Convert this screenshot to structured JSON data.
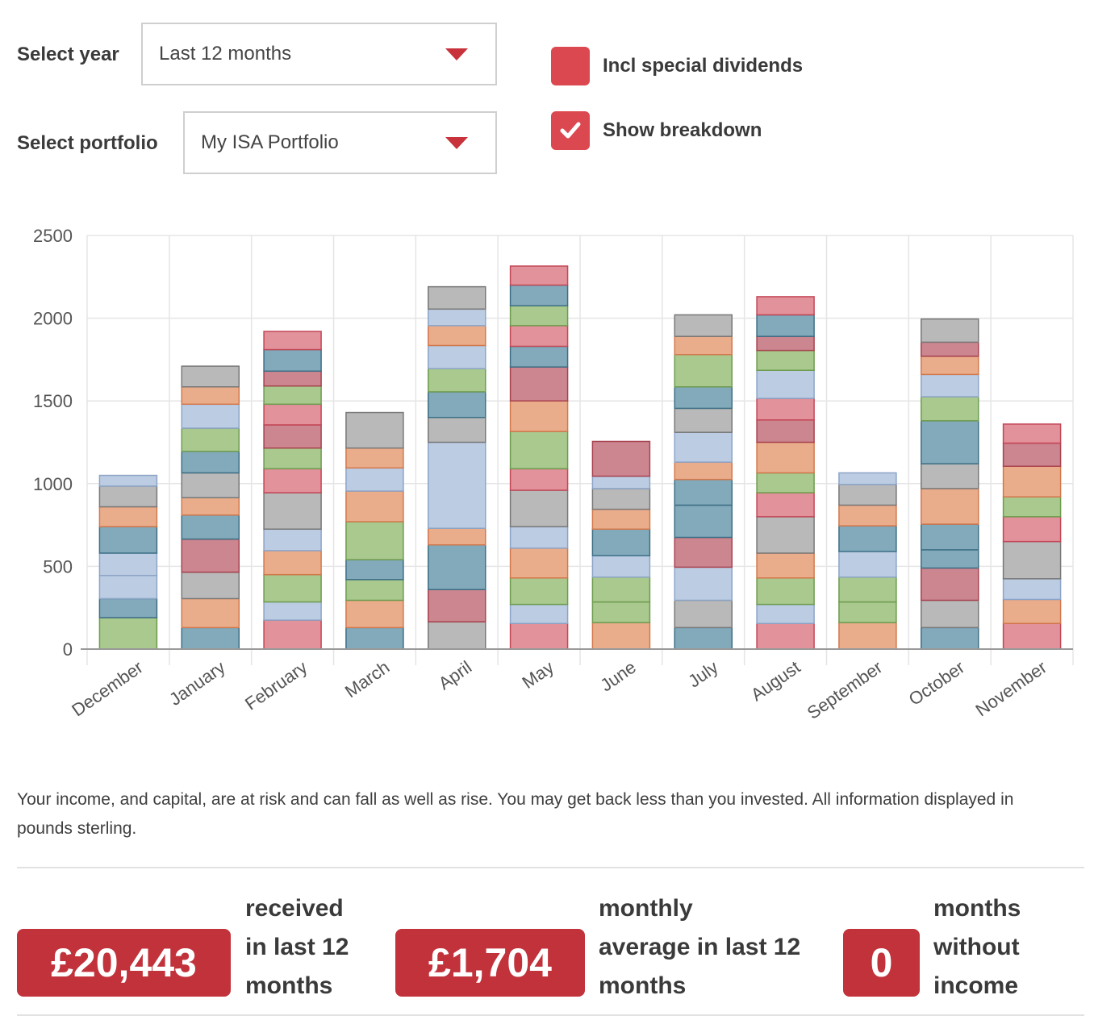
{
  "controls": {
    "year_label": "Select year",
    "year_value": "Last 12 months",
    "portfolio_label": "Select portfolio",
    "portfolio_value": "My ISA Portfolio",
    "special_dividends_label": "Incl special dividends",
    "special_dividends_checked": false,
    "breakdown_label": "Show breakdown",
    "breakdown_checked": true
  },
  "chart_data": {
    "type": "bar",
    "stacked": true,
    "categories": [
      "December",
      "January",
      "February",
      "March",
      "April",
      "May",
      "June",
      "July",
      "August",
      "September",
      "October",
      "November"
    ],
    "ylim": [
      0,
      2500
    ],
    "yticks": [
      0,
      500,
      1000,
      1500,
      2000,
      2500
    ],
    "grid": true,
    "stacks": [
      [
        {
          "value": 190,
          "color": "green"
        },
        {
          "value": 115,
          "color": "teal"
        },
        {
          "value": 140,
          "color": "lightblue"
        },
        {
          "value": 135,
          "color": "lightblue"
        },
        {
          "value": 160,
          "color": "teal"
        },
        {
          "value": 120,
          "color": "orange"
        },
        {
          "value": 125,
          "color": "gray"
        },
        {
          "value": 65,
          "color": "lightblue"
        }
      ],
      [
        {
          "value": 130,
          "color": "teal"
        },
        {
          "value": 175,
          "color": "orange"
        },
        {
          "value": 160,
          "color": "gray"
        },
        {
          "value": 200,
          "color": "red"
        },
        {
          "value": 145,
          "color": "teal"
        },
        {
          "value": 105,
          "color": "orange"
        },
        {
          "value": 150,
          "color": "gray"
        },
        {
          "value": 130,
          "color": "teal"
        },
        {
          "value": 140,
          "color": "green"
        },
        {
          "value": 145,
          "color": "lightblue"
        },
        {
          "value": 105,
          "color": "orange"
        },
        {
          "value": 125,
          "color": "gray"
        }
      ],
      [
        {
          "value": 175,
          "color": "pink"
        },
        {
          "value": 110,
          "color": "lightblue"
        },
        {
          "value": 165,
          "color": "green"
        },
        {
          "value": 145,
          "color": "orange"
        },
        {
          "value": 130,
          "color": "lightblue"
        },
        {
          "value": 220,
          "color": "gray"
        },
        {
          "value": 145,
          "color": "pink"
        },
        {
          "value": 125,
          "color": "green"
        },
        {
          "value": 140,
          "color": "red"
        },
        {
          "value": 125,
          "color": "pink"
        },
        {
          "value": 110,
          "color": "green"
        },
        {
          "value": 90,
          "color": "red"
        },
        {
          "value": 130,
          "color": "teal"
        },
        {
          "value": 110,
          "color": "pink"
        }
      ],
      [
        {
          "value": 130,
          "color": "teal"
        },
        {
          "value": 165,
          "color": "orange"
        },
        {
          "value": 125,
          "color": "green"
        },
        {
          "value": 120,
          "color": "teal"
        },
        {
          "value": 230,
          "color": "green"
        },
        {
          "value": 185,
          "color": "orange"
        },
        {
          "value": 140,
          "color": "lightblue"
        },
        {
          "value": 120,
          "color": "orange"
        },
        {
          "value": 215,
          "color": "gray"
        }
      ],
      [
        {
          "value": 165,
          "color": "gray"
        },
        {
          "value": 195,
          "color": "red"
        },
        {
          "value": 270,
          "color": "teal"
        },
        {
          "value": 100,
          "color": "orange"
        },
        {
          "value": 520,
          "color": "lightblue"
        },
        {
          "value": 150,
          "color": "gray"
        },
        {
          "value": 155,
          "color": "teal"
        },
        {
          "value": 140,
          "color": "green"
        },
        {
          "value": 140,
          "color": "lightblue"
        },
        {
          "value": 120,
          "color": "orange"
        },
        {
          "value": 100,
          "color": "lightblue"
        },
        {
          "value": 135,
          "color": "gray"
        }
      ],
      [
        {
          "value": 155,
          "color": "pink"
        },
        {
          "value": 115,
          "color": "lightblue"
        },
        {
          "value": 160,
          "color": "green"
        },
        {
          "value": 180,
          "color": "orange"
        },
        {
          "value": 130,
          "color": "lightblue"
        },
        {
          "value": 220,
          "color": "gray"
        },
        {
          "value": 130,
          "color": "pink"
        },
        {
          "value": 225,
          "color": "green"
        },
        {
          "value": 185,
          "color": "orange"
        },
        {
          "value": 205,
          "color": "red"
        },
        {
          "value": 125,
          "color": "teal"
        },
        {
          "value": 125,
          "color": "pink"
        },
        {
          "value": 120,
          "color": "green"
        },
        {
          "value": 125,
          "color": "teal"
        },
        {
          "value": 115,
          "color": "pink"
        }
      ],
      [
        {
          "value": 160,
          "color": "orange"
        },
        {
          "value": 125,
          "color": "green"
        },
        {
          "value": 150,
          "color": "green"
        },
        {
          "value": 130,
          "color": "lightblue"
        },
        {
          "value": 160,
          "color": "teal"
        },
        {
          "value": 120,
          "color": "orange"
        },
        {
          "value": 125,
          "color": "gray"
        },
        {
          "value": 75,
          "color": "lightblue"
        },
        {
          "value": 210,
          "color": "red"
        }
      ],
      [
        {
          "value": 130,
          "color": "teal"
        },
        {
          "value": 165,
          "color": "gray"
        },
        {
          "value": 200,
          "color": "lightblue"
        },
        {
          "value": 180,
          "color": "red"
        },
        {
          "value": 195,
          "color": "teal"
        },
        {
          "value": 155,
          "color": "teal"
        },
        {
          "value": 105,
          "color": "orange"
        },
        {
          "value": 180,
          "color": "lightblue"
        },
        {
          "value": 145,
          "color": "gray"
        },
        {
          "value": 130,
          "color": "teal"
        },
        {
          "value": 195,
          "color": "green"
        },
        {
          "value": 110,
          "color": "orange"
        },
        {
          "value": 130,
          "color": "gray"
        }
      ],
      [
        {
          "value": 155,
          "color": "pink"
        },
        {
          "value": 115,
          "color": "lightblue"
        },
        {
          "value": 160,
          "color": "green"
        },
        {
          "value": 150,
          "color": "orange"
        },
        {
          "value": 220,
          "color": "gray"
        },
        {
          "value": 145,
          "color": "pink"
        },
        {
          "value": 120,
          "color": "green"
        },
        {
          "value": 185,
          "color": "orange"
        },
        {
          "value": 135,
          "color": "red"
        },
        {
          "value": 130,
          "color": "pink"
        },
        {
          "value": 170,
          "color": "lightblue"
        },
        {
          "value": 120,
          "color": "green"
        },
        {
          "value": 85,
          "color": "red"
        },
        {
          "value": 130,
          "color": "teal"
        },
        {
          "value": 110,
          "color": "pink"
        }
      ],
      [
        {
          "value": 160,
          "color": "orange"
        },
        {
          "value": 125,
          "color": "green"
        },
        {
          "value": 150,
          "color": "green"
        },
        {
          "value": 155,
          "color": "lightblue"
        },
        {
          "value": 155,
          "color": "teal"
        },
        {
          "value": 125,
          "color": "orange"
        },
        {
          "value": 125,
          "color": "gray"
        },
        {
          "value": 70,
          "color": "lightblue"
        }
      ],
      [
        {
          "value": 130,
          "color": "teal"
        },
        {
          "value": 165,
          "color": "gray"
        },
        {
          "value": 195,
          "color": "red"
        },
        {
          "value": 110,
          "color": "teal"
        },
        {
          "value": 155,
          "color": "teal"
        },
        {
          "value": 215,
          "color": "orange"
        },
        {
          "value": 150,
          "color": "gray"
        },
        {
          "value": 260,
          "color": "teal"
        },
        {
          "value": 145,
          "color": "green"
        },
        {
          "value": 135,
          "color": "lightblue"
        },
        {
          "value": 110,
          "color": "orange"
        },
        {
          "value": 85,
          "color": "red"
        },
        {
          "value": 140,
          "color": "gray"
        }
      ],
      [
        {
          "value": 155,
          "color": "pink"
        },
        {
          "value": 145,
          "color": "orange"
        },
        {
          "value": 125,
          "color": "lightblue"
        },
        {
          "value": 225,
          "color": "gray"
        },
        {
          "value": 150,
          "color": "pink"
        },
        {
          "value": 120,
          "color": "green"
        },
        {
          "value": 185,
          "color": "orange"
        },
        {
          "value": 140,
          "color": "red"
        },
        {
          "value": 115,
          "color": "pink"
        }
      ]
    ]
  },
  "palette": {
    "green": [
      "#a9c98e",
      "#6e9c4f"
    ],
    "teal": [
      "#83aabb",
      "#3d6f86"
    ],
    "lightblue": [
      "#bccde3",
      "#8ca4c7"
    ],
    "orange": [
      "#eaad8c",
      "#d3784c"
    ],
    "gray": [
      "#b9b9b9",
      "#787878"
    ],
    "red": [
      "#cb8690",
      "#a8434f"
    ],
    "pink": [
      "#e2929a",
      "#c44757"
    ]
  },
  "disclaimer": "Your income, and capital, are at risk and can fall as well as rise. You may get back less than you invested. All information displayed in pounds sterling.",
  "stats": [
    {
      "value": "£20,443",
      "line1": "received",
      "line2": "in last 12",
      "line3": "months"
    },
    {
      "value": "£1,704",
      "line1": "monthly",
      "line2": "average in last 12",
      "line3": "months"
    },
    {
      "value": "0",
      "line1": "months",
      "line2": "without",
      "line3": "income"
    }
  ]
}
